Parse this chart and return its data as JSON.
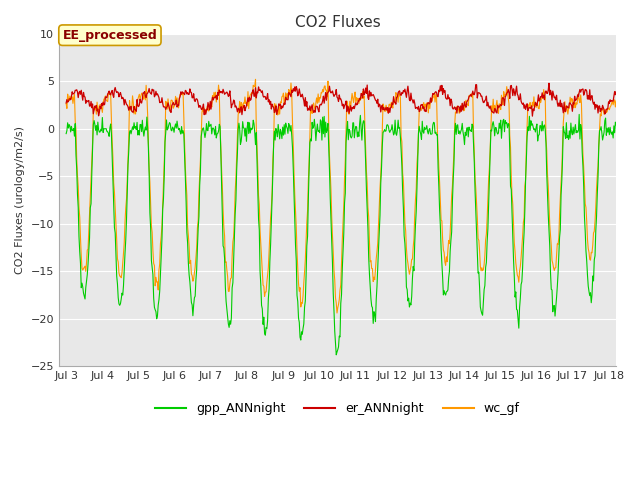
{
  "title": "CO2 Fluxes",
  "ylabel": "CO2 Fluxes (urology/m2/s)",
  "xlabel": "",
  "ylim": [
    -25,
    10
  ],
  "yticks": [
    -25,
    -20,
    -15,
    -10,
    -5,
    0,
    5,
    10
  ],
  "background_color": "#ffffff",
  "plot_bg_color": "#e8e8e8",
  "grid_color": "#ffffff",
  "colors": {
    "gpp_ANNnight": "#00cc00",
    "er_ANNnight": "#cc0000",
    "wc_gf": "#ff9900"
  },
  "legend_labels": [
    "gpp_ANNnight",
    "er_ANNnight",
    "wc_gf"
  ],
  "annotation_text": "EE_processed",
  "annotation_color": "#8b0000",
  "annotation_bg": "#ffffcc",
  "annotation_border": "#cc9900",
  "n_days": 16,
  "points_per_day": 48,
  "start_day": 3,
  "end_day": 18
}
